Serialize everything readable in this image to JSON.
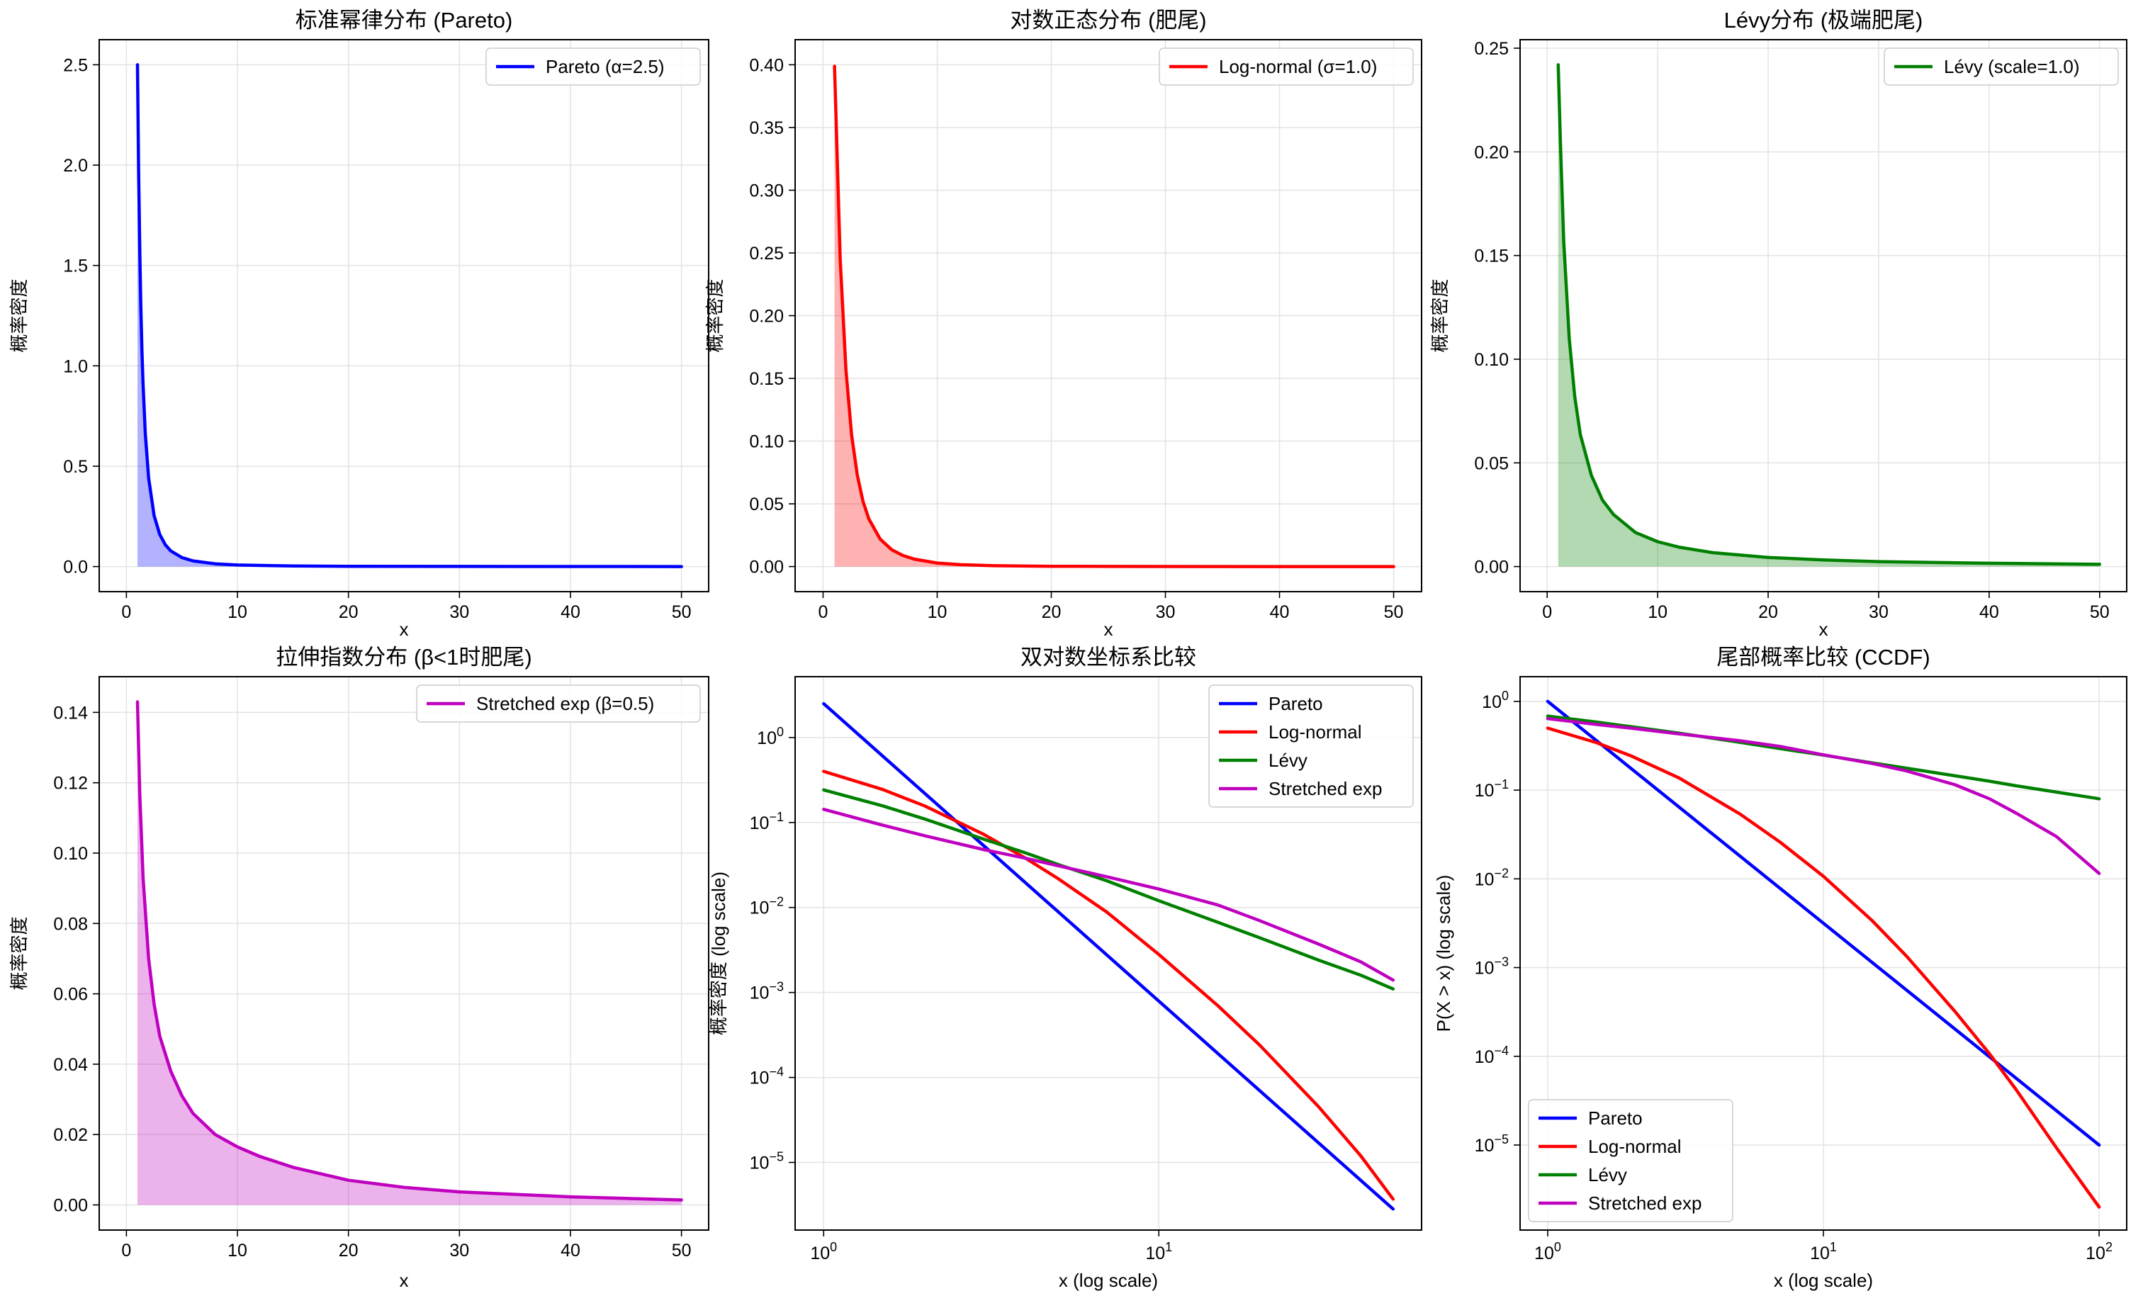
{
  "colors": {
    "pareto": "#0000ff",
    "lognormal": "#ff0000",
    "levy": "#008000",
    "stretched": "#bf00bf"
  },
  "chart_data": [
    {
      "type": "line",
      "title": "标准幂律分布 (Pareto)",
      "xlabel": "x",
      "ylabel": "概率密度",
      "xlim": [
        -2.45,
        52.45
      ],
      "ylim": [
        -0.125,
        2.625
      ],
      "xticks": [
        0,
        10,
        20,
        30,
        40,
        50
      ],
      "yticks": [
        0.0,
        0.5,
        1.0,
        1.5,
        2.0,
        2.5
      ],
      "xtick_labels": [
        "0",
        "10",
        "20",
        "30",
        "40",
        "50"
      ],
      "ytick_labels": [
        "0.0",
        "0.5",
        "1.0",
        "1.5",
        "2.0",
        "2.5"
      ],
      "fill": true,
      "legend_loc": "top-right",
      "series": [
        {
          "name": "Pareto (α=2.5)",
          "color_key": "pareto",
          "x": [
            1,
            1.1,
            1.2,
            1.3,
            1.4,
            1.5,
            1.7,
            2,
            2.5,
            3,
            3.5,
            4,
            5,
            6,
            8,
            10,
            15,
            20,
            30,
            40,
            50
          ],
          "y": [
            2.5,
            1.971,
            1.585,
            1.296,
            1.074,
            0.9072,
            0.6648,
            0.4419,
            0.253,
            0.1604,
            0.1091,
            0.07813,
            0.04472,
            0.02835,
            0.01381,
            0.00791,
            0.00287,
            0.0014,
            0.00051,
            0.00025,
            0.00014
          ]
        }
      ]
    },
    {
      "type": "line",
      "title": "对数正态分布 (肥尾)",
      "xlabel": "x",
      "ylabel": "概率密度",
      "xlim": [
        -2.45,
        52.45
      ],
      "ylim": [
        -0.02,
        0.42
      ],
      "xticks": [
        0,
        10,
        20,
        30,
        40,
        50
      ],
      "yticks": [
        0.0,
        0.05,
        0.1,
        0.15,
        0.2,
        0.25,
        0.3,
        0.35,
        0.4
      ],
      "xtick_labels": [
        "0",
        "10",
        "20",
        "30",
        "40",
        "50"
      ],
      "ytick_labels": [
        "0.00",
        "0.05",
        "0.10",
        "0.15",
        "0.20",
        "0.25",
        "0.30",
        "0.35",
        "0.40"
      ],
      "fill": true,
      "legend_loc": "top-right",
      "series": [
        {
          "name": "Log-normal (σ=1.0)",
          "color_key": "lognormal",
          "x": [
            1,
            1.5,
            2,
            2.5,
            3,
            3.5,
            4,
            5,
            6,
            7,
            8,
            10,
            12,
            15,
            20,
            25,
            30,
            40,
            50
          ],
          "y": [
            0.3989,
            0.2449,
            0.1569,
            0.1049,
            0.0727,
            0.0519,
            0.0381,
            0.0219,
            0.0135,
            0.0088,
            0.0059,
            0.0028,
            0.0015,
            0.0007,
            0.0002,
            0.0001,
            5e-05,
            2e-05,
            1e-05
          ]
        }
      ]
    },
    {
      "type": "line",
      "title": "Lévy分布 (极端肥尾)",
      "xlabel": "x",
      "ylabel": "概率密度",
      "xlim": [
        -2.45,
        52.45
      ],
      "ylim": [
        -0.0121,
        0.2541
      ],
      "xticks": [
        0,
        10,
        20,
        30,
        40,
        50
      ],
      "yticks": [
        0.0,
        0.05,
        0.1,
        0.15,
        0.2,
        0.25
      ],
      "xtick_labels": [
        "0",
        "10",
        "20",
        "30",
        "40",
        "50"
      ],
      "ytick_labels": [
        "0.00",
        "0.05",
        "0.10",
        "0.15",
        "0.20",
        "0.25"
      ],
      "fill": true,
      "legend_loc": "top-right",
      "series": [
        {
          "name": "Lévy (scale=1.0)",
          "color_key": "levy",
          "x": [
            1,
            1.2,
            1.5,
            2,
            2.5,
            3,
            4,
            5,
            6,
            8,
            10,
            12,
            15,
            20,
            25,
            30,
            40,
            50
          ],
          "y": [
            0.242,
            0.2047,
            0.1566,
            0.1098,
            0.0818,
            0.0637,
            0.044,
            0.0321,
            0.0251,
            0.0164,
            0.012,
            0.0093,
            0.0067,
            0.0044,
            0.0032,
            0.0024,
            0.0016,
            0.0011
          ]
        }
      ]
    },
    {
      "type": "line",
      "title": "拉伸指数分布 (β<1时肥尾)",
      "xlabel": "x",
      "ylabel": "概率密度",
      "xlim": [
        -2.45,
        52.45
      ],
      "ylim": [
        -0.00715,
        0.15015
      ],
      "xticks": [
        0,
        10,
        20,
        30,
        40,
        50
      ],
      "yticks": [
        0.0,
        0.02,
        0.04,
        0.06,
        0.08,
        0.1,
        0.12,
        0.14
      ],
      "xtick_labels": [
        "0",
        "10",
        "20",
        "30",
        "40",
        "50"
      ],
      "ytick_labels": [
        "0.00",
        "0.02",
        "0.04",
        "0.06",
        "0.08",
        "0.10",
        "0.12",
        "0.14"
      ],
      "fill": true,
      "legend_loc": "top-right",
      "series": [
        {
          "name": "Stretched exp (β=0.5)",
          "color_key": "stretched",
          "x": [
            1,
            1.2,
            1.5,
            2,
            2.5,
            3,
            4,
            5,
            6,
            8,
            10,
            12,
            15,
            20,
            25,
            30,
            40,
            50
          ],
          "y": [
            0.143,
            0.117,
            0.093,
            0.07,
            0.057,
            0.048,
            0.038,
            0.031,
            0.026,
            0.02,
            0.0165,
            0.0138,
            0.0107,
            0.007,
            0.005,
            0.0037,
            0.0023,
            0.0014
          ]
        }
      ]
    },
    {
      "type": "line",
      "title": "双对数坐标系比较",
      "xlabel": "x (log scale)",
      "ylabel": "概率密度 (log scale)",
      "xscale": "log",
      "yscale": "log",
      "xlim": [
        0.822,
        60.8
      ],
      "ylim": [
        1.6e-06,
        5.2
      ],
      "xticks": [
        1,
        10
      ],
      "yticks": [
        1e-05,
        0.0001,
        0.001,
        0.01,
        0.1,
        1
      ],
      "xtick_labels": [
        [
          "10",
          "0"
        ],
        [
          "10",
          "1"
        ]
      ],
      "ytick_labels": [
        [
          "10",
          "−5"
        ],
        [
          "10",
          "−4"
        ],
        [
          "10",
          "−3"
        ],
        [
          "10",
          "−2"
        ],
        [
          "10",
          "−1"
        ],
        [
          "10",
          "0"
        ]
      ],
      "fill": false,
      "legend_loc": "top-right",
      "series": [
        {
          "name": "Pareto",
          "color_key": "pareto",
          "x": [
            1,
            50
          ],
          "y": [
            2.5,
            2.83e-06
          ]
        },
        {
          "name": "Log-normal",
          "color_key": "lognormal",
          "x": [
            1,
            1.5,
            2,
            3,
            4,
            5,
            7,
            10,
            15,
            20,
            30,
            40,
            50
          ],
          "y": [
            0.4,
            0.2449,
            0.157,
            0.0727,
            0.0381,
            0.0219,
            0.0088,
            0.0028,
            0.0007,
            0.00024,
            4.5e-05,
            1.2e-05,
            3.7e-06
          ]
        },
        {
          "name": "Lévy",
          "color_key": "levy",
          "x": [
            1,
            1.5,
            2,
            3,
            4,
            5,
            7,
            10,
            15,
            20,
            30,
            40,
            50
          ],
          "y": [
            0.242,
            0.157,
            0.11,
            0.0637,
            0.044,
            0.0321,
            0.0206,
            0.012,
            0.0067,
            0.0044,
            0.0024,
            0.0016,
            0.0011
          ]
        },
        {
          "name": "Stretched exp",
          "color_key": "stretched",
          "x": [
            1,
            1.5,
            2,
            3,
            4,
            5,
            7,
            10,
            15,
            20,
            30,
            40,
            50
          ],
          "y": [
            0.143,
            0.093,
            0.07,
            0.048,
            0.038,
            0.031,
            0.023,
            0.0165,
            0.0107,
            0.007,
            0.0037,
            0.0023,
            0.0014
          ]
        }
      ]
    },
    {
      "type": "line",
      "title": "尾部概率比较 (CCDF)",
      "xlabel": "x (log scale)",
      "ylabel": "P(X > x) (log scale)",
      "xscale": "log",
      "yscale": "log",
      "xlim": [
        0.794,
        125.9
      ],
      "ylim": [
        1.1e-06,
        1.9
      ],
      "xticks": [
        1,
        10,
        100
      ],
      "yticks": [
        1e-05,
        0.0001,
        0.001,
        0.01,
        0.1,
        1
      ],
      "xtick_labels": [
        [
          "10",
          "0"
        ],
        [
          "10",
          "1"
        ],
        [
          "10",
          "2"
        ]
      ],
      "ytick_labels": [
        [
          "10",
          "−5"
        ],
        [
          "10",
          "−4"
        ],
        [
          "10",
          "−3"
        ],
        [
          "10",
          "−2"
        ],
        [
          "10",
          "−1"
        ],
        [
          "10",
          "0"
        ]
      ],
      "fill": false,
      "legend_loc": "bottom-left",
      "series": [
        {
          "name": "Pareto",
          "color_key": "pareto",
          "x": [
            1,
            100
          ],
          "y": [
            1.0,
            1e-05
          ]
        },
        {
          "name": "Log-normal",
          "color_key": "lognormal",
          "x": [
            1,
            1.5,
            2,
            3,
            5,
            7,
            10,
            15,
            20,
            30,
            40,
            50,
            70,
            100
          ],
          "y": [
            0.5,
            0.3437,
            0.2441,
            0.1367,
            0.0534,
            0.0256,
            0.0107,
            0.0034,
            0.00135,
            0.00032,
            0.000107,
            4.2e-05,
            9.3e-06,
            2e-06
          ]
        },
        {
          "name": "Lévy",
          "color_key": "levy",
          "x": [
            1,
            1.5,
            2,
            3,
            5,
            7,
            10,
            15,
            20,
            30,
            40,
            50,
            70,
            100
          ],
          "y": [
            0.683,
            0.586,
            0.52,
            0.439,
            0.345,
            0.293,
            0.248,
            0.203,
            0.177,
            0.145,
            0.126,
            0.112,
            0.095,
            0.08
          ]
        },
        {
          "name": "Stretched exp",
          "color_key": "stretched",
          "x": [
            1,
            1.5,
            2,
            3,
            5,
            7,
            10,
            15,
            20,
            30,
            40,
            50,
            70,
            100
          ],
          "y": [
            0.64,
            0.55,
            0.5,
            0.43,
            0.36,
            0.31,
            0.25,
            0.2,
            0.165,
            0.115,
            0.08,
            0.055,
            0.03,
            0.0115
          ]
        }
      ]
    }
  ]
}
